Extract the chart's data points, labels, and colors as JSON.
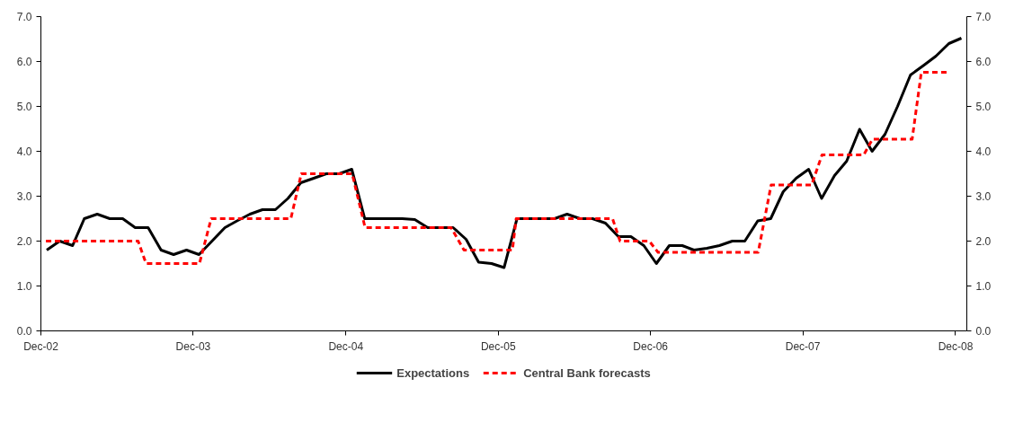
{
  "chart_data": {
    "type": "line",
    "xlim": [
      "2002-12-01",
      "2008-12-28"
    ],
    "xticks": [
      {
        "value": "2002-12",
        "label": "Dec-02"
      },
      {
        "value": "2003-12",
        "label": "Dec-03"
      },
      {
        "value": "2004-12",
        "label": "Dec-04"
      },
      {
        "value": "2005-12",
        "label": "Dec-05"
      },
      {
        "value": "2006-12",
        "label": "Dec-06"
      },
      {
        "value": "2007-12",
        "label": "Dec-07"
      },
      {
        "value": "2008-12",
        "label": "Dec-08"
      }
    ],
    "ylim": [
      0,
      7
    ],
    "yticks": [
      {
        "value": 0,
        "label": "0.0"
      },
      {
        "value": 1,
        "label": "1.0"
      },
      {
        "value": 2,
        "label": "2.0"
      },
      {
        "value": 3,
        "label": "3.0"
      },
      {
        "value": 4,
        "label": "4.0"
      },
      {
        "value": 5,
        "label": "5.0"
      },
      {
        "value": 6,
        "label": "6.0"
      },
      {
        "value": 7,
        "label": "7.0"
      }
    ],
    "y2lim": [
      0,
      7
    ],
    "y2ticks": [
      {
        "value": 0,
        "label": "0.0"
      },
      {
        "value": 1,
        "label": "1.0"
      },
      {
        "value": 2,
        "label": "2.0"
      },
      {
        "value": 3,
        "label": "3.0"
      },
      {
        "value": 4,
        "label": "4.0"
      },
      {
        "value": 5,
        "label": "5.0"
      },
      {
        "value": 6,
        "label": "6.0"
      },
      {
        "value": 7,
        "label": "7.0"
      }
    ],
    "grid": false,
    "legend": "bottom",
    "marker": "none",
    "series": [
      {
        "name": "Expectations",
        "color": "#000000",
        "line_style": "solid",
        "x": [
          "2002-12-15",
          "2003-01-15",
          "2003-02-15",
          "2003-03-15",
          "2003-04-15",
          "2003-05-15",
          "2003-06-15",
          "2003-07-15",
          "2003-08-15",
          "2003-09-15",
          "2003-10-15",
          "2003-11-15",
          "2003-12-15",
          "2004-01-15",
          "2004-02-15",
          "2004-03-15",
          "2004-04-15",
          "2004-05-15",
          "2004-06-15",
          "2004-07-15",
          "2004-08-15",
          "2004-09-15",
          "2004-10-15",
          "2004-11-15",
          "2004-12-15",
          "2005-01-15",
          "2005-02-15",
          "2005-03-15",
          "2005-04-15",
          "2005-05-15",
          "2005-06-15",
          "2005-07-15",
          "2005-08-15",
          "2005-09-15",
          "2005-10-15",
          "2005-11-15",
          "2005-12-15",
          "2006-01-15",
          "2006-02-15",
          "2006-03-15",
          "2006-04-15",
          "2006-05-15",
          "2006-06-15",
          "2006-07-15",
          "2006-08-15",
          "2006-09-15",
          "2006-10-15",
          "2006-11-15",
          "2006-12-15",
          "2007-01-15",
          "2007-02-15",
          "2007-03-15",
          "2007-04-15",
          "2007-05-15",
          "2007-06-15",
          "2007-07-15",
          "2007-08-15",
          "2007-09-15",
          "2007-10-15",
          "2007-11-15",
          "2007-12-15",
          "2008-01-15",
          "2008-02-15",
          "2008-03-15",
          "2008-04-15",
          "2008-05-15",
          "2008-06-15",
          "2008-07-15",
          "2008-08-15",
          "2008-09-15",
          "2008-10-15",
          "2008-11-15",
          "2008-12-15"
        ],
        "values": [
          1.8,
          2.0,
          1.9,
          2.5,
          2.6,
          2.5,
          2.5,
          2.3,
          2.3,
          1.8,
          1.7,
          1.8,
          1.7,
          2.0,
          2.3,
          2.45,
          2.6,
          2.7,
          2.7,
          2.95,
          3.3,
          3.4,
          3.5,
          3.5,
          3.6,
          2.5,
          2.5,
          2.5,
          2.5,
          2.48,
          2.3,
          2.3,
          2.3,
          2.04,
          1.53,
          1.5,
          1.41,
          2.5,
          2.5,
          2.5,
          2.5,
          2.6,
          2.5,
          2.5,
          2.4,
          2.1,
          2.1,
          1.9,
          1.5,
          1.9,
          1.9,
          1.8,
          1.84,
          1.9,
          2.0,
          2.0,
          2.45,
          2.5,
          3.1,
          3.4,
          3.6,
          2.95,
          3.46,
          3.78,
          4.49,
          4.0,
          4.38,
          5.0,
          5.7,
          5.91,
          6.12,
          6.4,
          6.52
        ]
      },
      {
        "name": "Central Bank forecasts",
        "color": "#ff0000",
        "line_style": "dashed",
        "x": [
          "2002-12-13",
          "2003-07-22",
          "2003-08-10",
          "2003-12-16",
          "2004-01-13",
          "2004-07-22",
          "2004-08-16",
          "2004-12-16",
          "2005-01-16",
          "2005-08-10",
          "2005-09-10",
          "2006-01-04",
          "2006-01-13",
          "2006-09-01",
          "2006-09-19",
          "2006-11-28",
          "2006-12-19",
          "2007-08-16",
          "2007-09-16",
          "2007-12-22",
          "2008-01-16",
          "2008-04-25",
          "2008-05-16",
          "2008-08-19",
          "2008-09-10",
          "2008-11-13"
        ],
        "values": [
          2.0,
          2.0,
          1.5,
          1.5,
          2.5,
          2.5,
          3.5,
          3.5,
          2.3,
          2.3,
          1.8,
          1.8,
          2.5,
          2.5,
          2.0,
          2.0,
          1.75,
          1.75,
          3.25,
          3.25,
          3.92,
          3.92,
          4.27,
          4.27,
          5.76,
          5.76
        ]
      }
    ]
  }
}
